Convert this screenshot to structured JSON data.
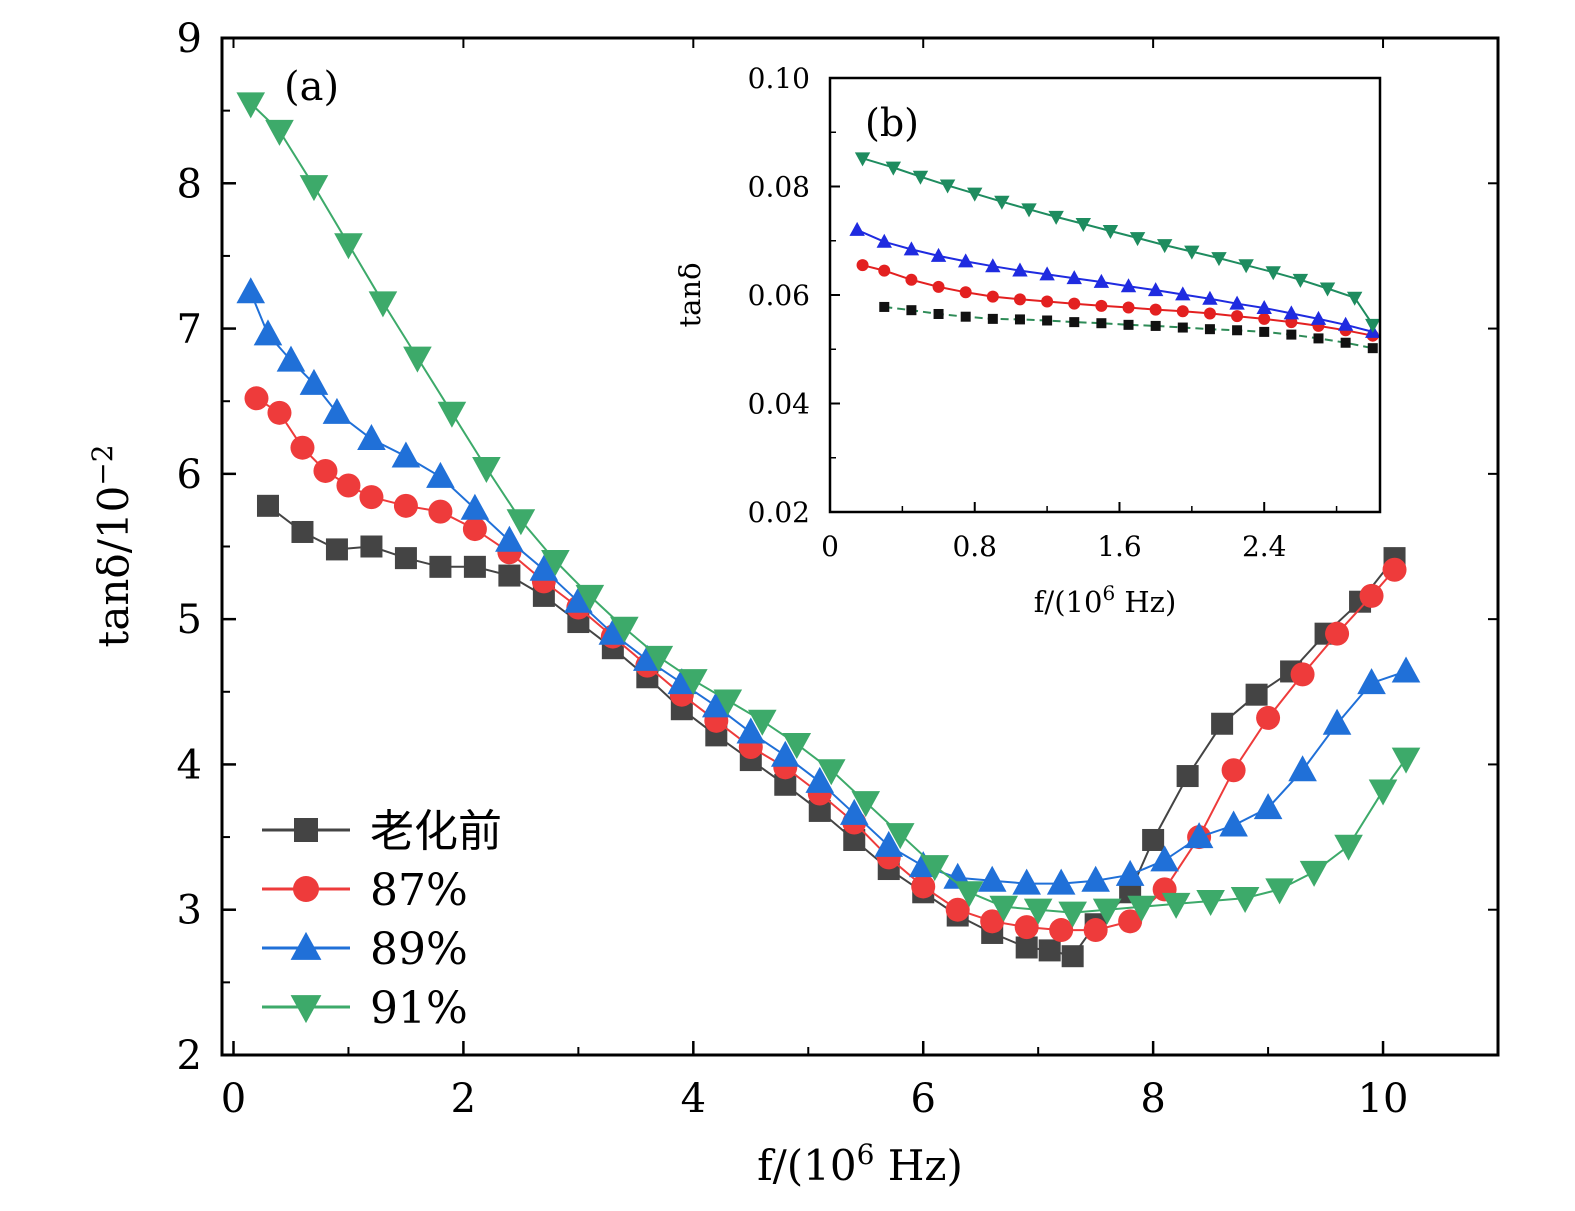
{
  "chart_data": [
    {
      "type": "scatter",
      "panel": "(a)",
      "xlabel": "f/(10^6 Hz)",
      "ylabel": "tanδ/10^-2",
      "xlim": [
        -0.1,
        11.0
      ],
      "ylim": [
        2,
        9
      ],
      "xticks": [
        "0",
        "2",
        "4",
        "6",
        "8",
        "10"
      ],
      "yticks": [
        "2",
        "3",
        "4",
        "5",
        "6",
        "7",
        "8",
        "9"
      ],
      "legend_position": "bottom-left",
      "series": [
        {
          "name": "老化前",
          "color": "#444444",
          "marker": "square",
          "points": [
            [
              0.3,
              5.78
            ],
            [
              0.6,
              5.6
            ],
            [
              0.9,
              5.48
            ],
            [
              1.2,
              5.5
            ],
            [
              1.5,
              5.42
            ],
            [
              1.8,
              5.36
            ],
            [
              2.1,
              5.36
            ],
            [
              2.4,
              5.3
            ],
            [
              2.7,
              5.16
            ],
            [
              3.0,
              4.98
            ],
            [
              3.3,
              4.8
            ],
            [
              3.6,
              4.6
            ],
            [
              3.9,
              4.38
            ],
            [
              4.2,
              4.2
            ],
            [
              4.5,
              4.03
            ],
            [
              4.8,
              3.86
            ],
            [
              5.1,
              3.68
            ],
            [
              5.4,
              3.48
            ],
            [
              5.7,
              3.28
            ],
            [
              6.0,
              3.12
            ],
            [
              6.3,
              2.96
            ],
            [
              6.6,
              2.84
            ],
            [
              6.9,
              2.74
            ],
            [
              7.1,
              2.72
            ],
            [
              7.3,
              2.68
            ],
            [
              7.5,
              2.9
            ],
            [
              7.8,
              3.12
            ],
            [
              8.0,
              3.48
            ],
            [
              8.3,
              3.92
            ],
            [
              8.6,
              4.28
            ],
            [
              8.9,
              4.48
            ],
            [
              9.2,
              4.64
            ],
            [
              9.5,
              4.9
            ],
            [
              9.8,
              5.12
            ],
            [
              10.1,
              5.42
            ]
          ]
        },
        {
          "name": "87%",
          "color": "#EE3B3B",
          "marker": "circle",
          "points": [
            [
              0.2,
              6.52
            ],
            [
              0.4,
              6.42
            ],
            [
              0.6,
              6.18
            ],
            [
              0.8,
              6.02
            ],
            [
              1.0,
              5.92
            ],
            [
              1.2,
              5.84
            ],
            [
              1.5,
              5.78
            ],
            [
              1.8,
              5.74
            ],
            [
              2.1,
              5.62
            ],
            [
              2.4,
              5.46
            ],
            [
              2.7,
              5.26
            ],
            [
              3.0,
              5.08
            ],
            [
              3.3,
              4.88
            ],
            [
              3.6,
              4.68
            ],
            [
              3.9,
              4.48
            ],
            [
              4.2,
              4.3
            ],
            [
              4.5,
              4.12
            ],
            [
              4.8,
              3.98
            ],
            [
              5.1,
              3.8
            ],
            [
              5.4,
              3.6
            ],
            [
              5.7,
              3.36
            ],
            [
              6.0,
              3.16
            ],
            [
              6.3,
              3.0
            ],
            [
              6.6,
              2.92
            ],
            [
              6.9,
              2.88
            ],
            [
              7.2,
              2.86
            ],
            [
              7.5,
              2.86
            ],
            [
              7.8,
              2.92
            ],
            [
              8.1,
              3.14
            ],
            [
              8.4,
              3.5
            ],
            [
              8.7,
              3.96
            ],
            [
              9.0,
              4.32
            ],
            [
              9.3,
              4.62
            ],
            [
              9.6,
              4.9
            ],
            [
              9.9,
              5.16
            ],
            [
              10.1,
              5.34
            ]
          ]
        },
        {
          "name": "89%",
          "color": "#2070D8",
          "marker": "triangle-up",
          "points": [
            [
              0.15,
              7.25
            ],
            [
              0.3,
              6.96
            ],
            [
              0.5,
              6.78
            ],
            [
              0.7,
              6.62
            ],
            [
              0.9,
              6.42
            ],
            [
              1.2,
              6.24
            ],
            [
              1.5,
              6.12
            ],
            [
              1.8,
              5.98
            ],
            [
              2.1,
              5.76
            ],
            [
              2.4,
              5.54
            ],
            [
              2.7,
              5.34
            ],
            [
              3.0,
              5.12
            ],
            [
              3.3,
              4.9
            ],
            [
              3.6,
              4.72
            ],
            [
              3.9,
              4.56
            ],
            [
              4.2,
              4.4
            ],
            [
              4.5,
              4.22
            ],
            [
              4.8,
              4.06
            ],
            [
              5.1,
              3.88
            ],
            [
              5.4,
              3.66
            ],
            [
              5.7,
              3.44
            ],
            [
              6.0,
              3.3
            ],
            [
              6.3,
              3.22
            ],
            [
              6.6,
              3.2
            ],
            [
              6.9,
              3.18
            ],
            [
              7.2,
              3.18
            ],
            [
              7.5,
              3.2
            ],
            [
              7.8,
              3.24
            ],
            [
              8.1,
              3.34
            ],
            [
              8.4,
              3.5
            ],
            [
              8.7,
              3.58
            ],
            [
              9.0,
              3.7
            ],
            [
              9.3,
              3.96
            ],
            [
              9.6,
              4.28
            ],
            [
              9.9,
              4.56
            ],
            [
              10.2,
              4.64
            ]
          ]
        },
        {
          "name": "91%",
          "color": "#3DAA6A",
          "marker": "triangle-down",
          "points": [
            [
              0.15,
              8.55
            ],
            [
              0.4,
              8.36
            ],
            [
              0.7,
              7.98
            ],
            [
              1.0,
              7.58
            ],
            [
              1.3,
              7.18
            ],
            [
              1.6,
              6.8
            ],
            [
              1.9,
              6.42
            ],
            [
              2.2,
              6.04
            ],
            [
              2.5,
              5.68
            ],
            [
              2.8,
              5.4
            ],
            [
              3.1,
              5.16
            ],
            [
              3.4,
              4.94
            ],
            [
              3.7,
              4.74
            ],
            [
              4.0,
              4.58
            ],
            [
              4.3,
              4.44
            ],
            [
              4.6,
              4.3
            ],
            [
              4.9,
              4.14
            ],
            [
              5.2,
              3.96
            ],
            [
              5.5,
              3.74
            ],
            [
              5.8,
              3.52
            ],
            [
              6.1,
              3.3
            ],
            [
              6.4,
              3.12
            ],
            [
              6.7,
              3.02
            ],
            [
              7.0,
              3.0
            ],
            [
              7.3,
              2.98
            ],
            [
              7.6,
              3.0
            ],
            [
              7.9,
              3.02
            ],
            [
              8.2,
              3.04
            ],
            [
              8.5,
              3.06
            ],
            [
              8.8,
              3.08
            ],
            [
              9.1,
              3.14
            ],
            [
              9.4,
              3.26
            ],
            [
              9.7,
              3.44
            ],
            [
              10.0,
              3.82
            ],
            [
              10.2,
              4.04
            ]
          ]
        }
      ]
    },
    {
      "type": "scatter",
      "panel": "(b)",
      "inset": true,
      "xlabel": "f/(10^6 Hz)",
      "ylabel": "tanδ",
      "xlim": [
        0,
        3.04
      ],
      "ylim": [
        0.02,
        0.1
      ],
      "xticks": [
        "0",
        "0.8",
        "1.6",
        "2.4"
      ],
      "yticks": [
        "0.02",
        "0.04",
        "0.06",
        "0.08",
        "0.10"
      ],
      "series": [
        {
          "color": "#111111",
          "marker": "square",
          "line_color": "#2E8B57",
          "line_style": "dashed",
          "points": [
            [
              0.3,
              0.0578
            ],
            [
              0.45,
              0.0572
            ],
            [
              0.6,
              0.0565
            ],
            [
              0.75,
              0.056
            ],
            [
              0.9,
              0.0556
            ],
            [
              1.05,
              0.0555
            ],
            [
              1.2,
              0.0553
            ],
            [
              1.35,
              0.055
            ],
            [
              1.5,
              0.0548
            ],
            [
              1.65,
              0.0545
            ],
            [
              1.8,
              0.0543
            ],
            [
              1.95,
              0.054
            ],
            [
              2.1,
              0.0537
            ],
            [
              2.25,
              0.0535
            ],
            [
              2.4,
              0.0532
            ],
            [
              2.55,
              0.0527
            ],
            [
              2.7,
              0.052
            ],
            [
              2.85,
              0.0512
            ],
            [
              3.0,
              0.0502
            ]
          ]
        },
        {
          "color": "#E32020",
          "marker": "circle",
          "line_color": "#E32020",
          "line_style": "solid",
          "points": [
            [
              0.18,
              0.0655
            ],
            [
              0.3,
              0.0645
            ],
            [
              0.45,
              0.0628
            ],
            [
              0.6,
              0.0615
            ],
            [
              0.75,
              0.0605
            ],
            [
              0.9,
              0.0597
            ],
            [
              1.05,
              0.0592
            ],
            [
              1.2,
              0.0588
            ],
            [
              1.35,
              0.0584
            ],
            [
              1.5,
              0.058
            ],
            [
              1.65,
              0.0577
            ],
            [
              1.8,
              0.0573
            ],
            [
              1.95,
              0.057
            ],
            [
              2.1,
              0.0566
            ],
            [
              2.25,
              0.0561
            ],
            [
              2.4,
              0.0556
            ],
            [
              2.55,
              0.055
            ],
            [
              2.7,
              0.0543
            ],
            [
              2.85,
              0.0535
            ],
            [
              3.0,
              0.0525
            ]
          ]
        },
        {
          "color": "#1F2BE0",
          "marker": "triangle-up",
          "line_color": "#1F2BE0",
          "line_style": "solid",
          "points": [
            [
              0.15,
              0.072
            ],
            [
              0.3,
              0.0698
            ],
            [
              0.45,
              0.0684
            ],
            [
              0.6,
              0.0672
            ],
            [
              0.75,
              0.0662
            ],
            [
              0.9,
              0.0653
            ],
            [
              1.05,
              0.0645
            ],
            [
              1.2,
              0.0638
            ],
            [
              1.35,
              0.0631
            ],
            [
              1.5,
              0.0624
            ],
            [
              1.65,
              0.0616
            ],
            [
              1.8,
              0.0609
            ],
            [
              1.95,
              0.0601
            ],
            [
              2.1,
              0.0593
            ],
            [
              2.25,
              0.0584
            ],
            [
              2.4,
              0.0576
            ],
            [
              2.55,
              0.0566
            ],
            [
              2.7,
              0.0556
            ],
            [
              2.85,
              0.0545
            ],
            [
              3.0,
              0.0532
            ]
          ]
        },
        {
          "color": "#1E8C5F",
          "marker": "triangle-down",
          "line_color": "#1E8C5F",
          "line_style": "solid",
          "points": [
            [
              0.18,
              0.0852
            ],
            [
              0.35,
              0.0835
            ],
            [
              0.5,
              0.0818
            ],
            [
              0.65,
              0.0802
            ],
            [
              0.8,
              0.0787
            ],
            [
              0.95,
              0.0772
            ],
            [
              1.1,
              0.0758
            ],
            [
              1.25,
              0.0744
            ],
            [
              1.4,
              0.0731
            ],
            [
              1.55,
              0.0718
            ],
            [
              1.7,
              0.0705
            ],
            [
              1.85,
              0.0692
            ],
            [
              2.0,
              0.068
            ],
            [
              2.15,
              0.0668
            ],
            [
              2.3,
              0.0655
            ],
            [
              2.45,
              0.0642
            ],
            [
              2.6,
              0.0628
            ],
            [
              2.75,
              0.0612
            ],
            [
              2.9,
              0.0595
            ],
            [
              3.0,
              0.0545
            ]
          ]
        }
      ]
    }
  ]
}
